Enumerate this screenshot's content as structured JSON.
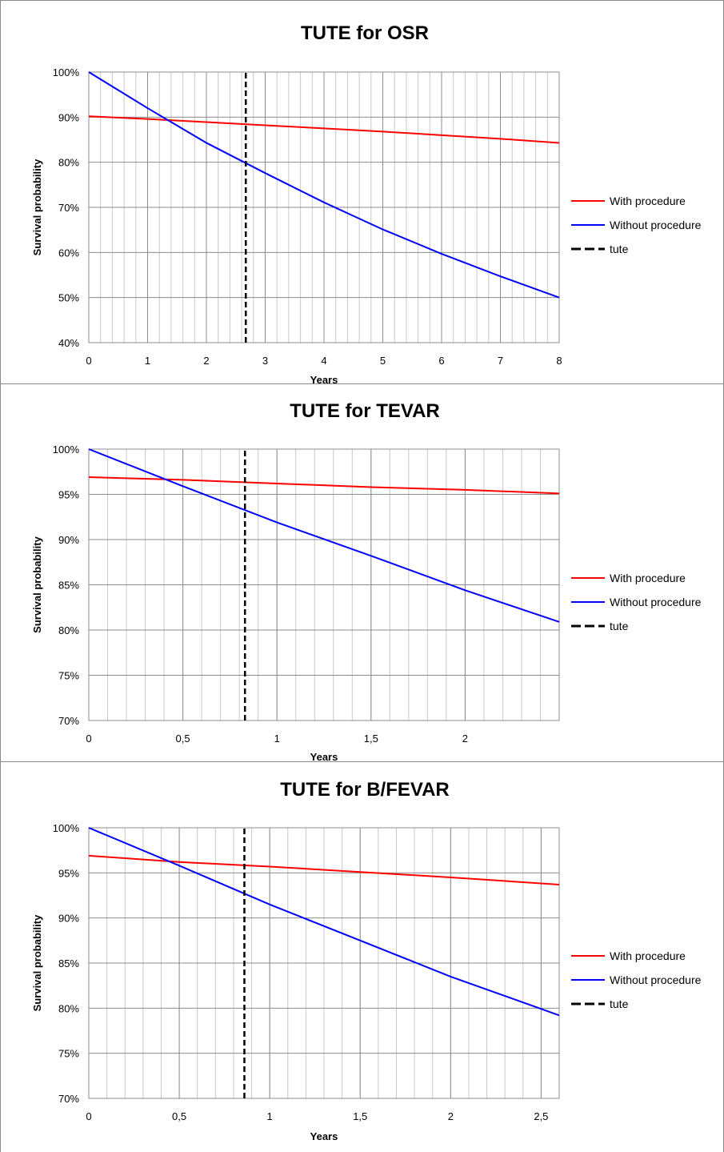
{
  "chart_data": [
    {
      "type": "line",
      "title": "TUTE for OSR",
      "xlabel": "Years",
      "ylabel": "Survival probability",
      "xlim": [
        0,
        8
      ],
      "ylim": [
        0.4,
        1.0
      ],
      "xticks": [
        0,
        1,
        2,
        3,
        4,
        5,
        6,
        7,
        8
      ],
      "xtick_labels": [
        "0",
        "1",
        "2",
        "3",
        "4",
        "5",
        "6",
        "7",
        "8"
      ],
      "yticks": [
        0.4,
        0.5,
        0.6,
        0.7,
        0.8,
        0.9,
        1.0
      ],
      "ytick_labels": [
        "40%",
        "50%",
        "60%",
        "70%",
        "80%",
        "90%",
        "100%"
      ],
      "minor_grid_step": 0.2,
      "grid": true,
      "legend_position": "right",
      "series": [
        {
          "name": "With procedure",
          "color": "#ff0000",
          "style": "solid",
          "x": [
            0,
            1,
            2,
            3,
            4,
            5,
            6,
            7,
            8
          ],
          "y": [
            0.902,
            0.896,
            0.889,
            0.882,
            0.875,
            0.868,
            0.86,
            0.852,
            0.843
          ]
        },
        {
          "name": "Without procedure",
          "color": "#0000ff",
          "style": "solid",
          "x": [
            0,
            1,
            2,
            3,
            4,
            5,
            6,
            7,
            8
          ],
          "y": [
            1.0,
            0.92,
            0.843,
            0.776,
            0.711,
            0.651,
            0.597,
            0.547,
            0.5
          ]
        },
        {
          "name": "tute",
          "color": "#000000",
          "style": "dashed",
          "x": [
            2.67,
            2.67
          ],
          "y": [
            0.4,
            1.0
          ]
        }
      ]
    },
    {
      "type": "line",
      "title": "TUTE for TEVAR",
      "xlabel": "Years",
      "ylabel": "Survival probability",
      "xlim": [
        0,
        2.5
      ],
      "ylim": [
        0.7,
        1.0
      ],
      "xticks": [
        0,
        0.5,
        1,
        1.5,
        2
      ],
      "xtick_labels": [
        "0",
        "0,5",
        "1",
        "1,5",
        "2"
      ],
      "yticks": [
        0.7,
        0.75,
        0.8,
        0.85,
        0.9,
        0.95,
        1.0
      ],
      "ytick_labels": [
        "70%",
        "75%",
        "80%",
        "85%",
        "90%",
        "95%",
        "100%"
      ],
      "minor_grid_step": 0.1,
      "grid": true,
      "legend_position": "right",
      "series": [
        {
          "name": "With procedure",
          "color": "#ff0000",
          "style": "solid",
          "x": [
            0,
            0.5,
            1,
            1.5,
            2,
            2.5
          ],
          "y": [
            0.969,
            0.966,
            0.962,
            0.958,
            0.955,
            0.951
          ]
        },
        {
          "name": "Without procedure",
          "color": "#0000ff",
          "style": "solid",
          "x": [
            0,
            0.5,
            1,
            1.5,
            2,
            2.5
          ],
          "y": [
            1.0,
            0.959,
            0.919,
            0.882,
            0.844,
            0.809
          ]
        },
        {
          "name": "tute",
          "color": "#000000",
          "style": "dashed",
          "x": [
            0.83,
            0.83
          ],
          "y": [
            0.7,
            1.0
          ]
        }
      ]
    },
    {
      "type": "line",
      "title": "TUTE for B/FEVAR",
      "xlabel": "Years",
      "ylabel": "Survival probability",
      "xlim": [
        0,
        2.6
      ],
      "ylim": [
        0.7,
        1.0
      ],
      "xticks": [
        0,
        0.5,
        1,
        1.5,
        2,
        2.5
      ],
      "xtick_labels": [
        "0",
        "0,5",
        "1",
        "1,5",
        "2",
        "2,5"
      ],
      "yticks": [
        0.7,
        0.75,
        0.8,
        0.85,
        0.9,
        0.95,
        1.0
      ],
      "ytick_labels": [
        "70%",
        "75%",
        "80%",
        "85%",
        "90%",
        "95%",
        "100%"
      ],
      "minor_grid_step": 0.1,
      "grid": true,
      "legend_position": "right",
      "series": [
        {
          "name": "With procedure",
          "color": "#ff0000",
          "style": "solid",
          "x": [
            0,
            0.5,
            1,
            1.5,
            2,
            2.6
          ],
          "y": [
            0.969,
            0.962,
            0.957,
            0.951,
            0.945,
            0.937
          ]
        },
        {
          "name": "Without procedure",
          "color": "#0000ff",
          "style": "solid",
          "x": [
            0,
            0.5,
            1,
            1.5,
            2,
            2.6
          ],
          "y": [
            1.0,
            0.958,
            0.915,
            0.875,
            0.835,
            0.792
          ]
        },
        {
          "name": "tute",
          "color": "#000000",
          "style": "dashed",
          "x": [
            0.86,
            0.86
          ],
          "y": [
            0.7,
            1.0
          ]
        }
      ]
    }
  ]
}
